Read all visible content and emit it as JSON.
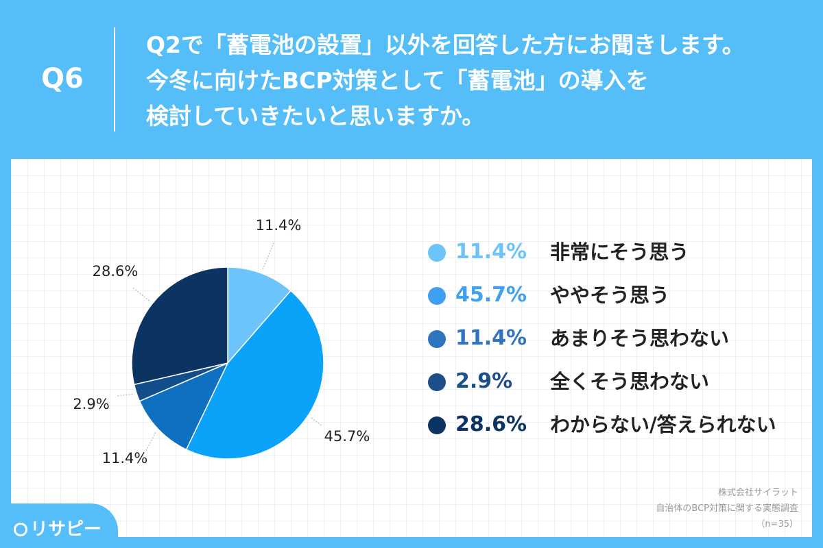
{
  "header": {
    "qnum": "Q6",
    "question_lines": [
      "Q2で「蓄電池の設置」以外を回答した方にお聞きします。",
      "今冬に向けたBCP対策として「蓄電池」の導入を",
      "検討していきたいと思いますか。"
    ]
  },
  "chart_data": {
    "type": "pie",
    "categories": [
      "非常にそう思う",
      "ややそう思う",
      "あまりそう思わない",
      "全くそう思わない",
      "わからない/答えられない"
    ],
    "values": [
      11.4,
      45.7,
      11.4,
      2.9,
      28.6
    ],
    "labels": [
      "11.4%",
      "45.7%",
      "11.4%",
      "2.9%",
      "28.6%"
    ],
    "colors": [
      "#6cc4fb",
      "#0aa3f9",
      "#0f6fc0",
      "#134d8c",
      "#0c3463"
    ],
    "legend_colors": [
      "#6cc4fb",
      "#3ea0ee",
      "#2f74c0",
      "#1d4f8a",
      "#0c3463"
    ],
    "legend_placement": "right",
    "legend": [
      {
        "value": "11.4%",
        "label": "非常にそう思う"
      },
      {
        "value": "45.7%",
        "label": "ややそう思う"
      },
      {
        "value": "11.4%",
        "label": "あまりそう思わない"
      },
      {
        "value": "2.9%",
        "label": "全くそう思わない"
      },
      {
        "value": "28.6%",
        "label": "わからない/答えられない"
      }
    ]
  },
  "source": {
    "company": "株式会社サイラット",
    "survey": "自治体のBCP対策に関する実態調査",
    "n": "（n=35）"
  },
  "logo": {
    "text": "リサピー"
  }
}
